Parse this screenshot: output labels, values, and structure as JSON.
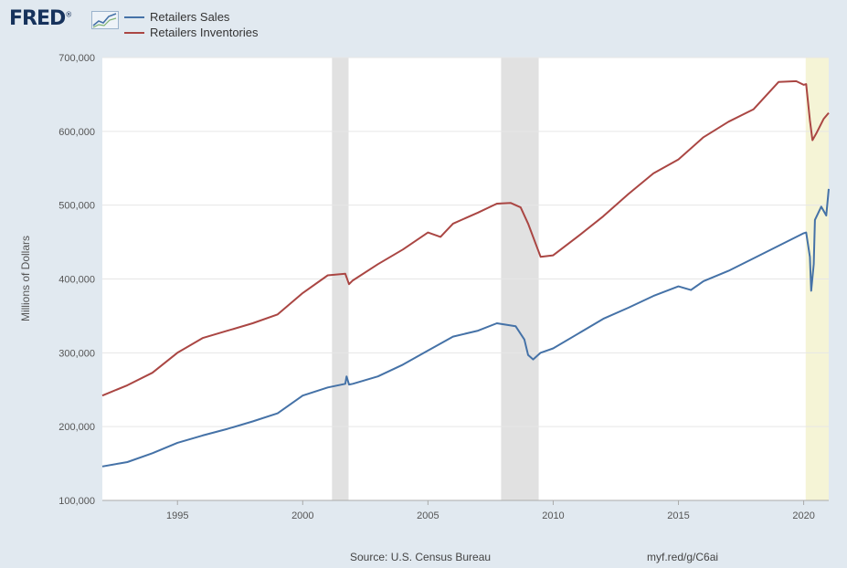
{
  "header": {
    "logo_text": "FRED",
    "logo_mark": "®"
  },
  "colors": {
    "sales": "#4572a7",
    "inventories": "#aa4643",
    "recession": "#e1e1e1",
    "highlight": "#f5f4d6"
  },
  "chart_data": {
    "type": "line",
    "title": "",
    "ylabel": "Millions of Dollars",
    "xlabel": "",
    "xlim": [
      1992.0,
      2021.0
    ],
    "ylim": [
      100000,
      700000
    ],
    "y_ticks": [
      100000,
      200000,
      300000,
      400000,
      500000,
      600000,
      700000
    ],
    "y_tick_labels": [
      "100,000",
      "200,000",
      "300,000",
      "400,000",
      "500,000",
      "600,000",
      "700,000"
    ],
    "x_ticks": [
      1995,
      2000,
      2005,
      2010,
      2015,
      2020
    ],
    "x_tick_labels": [
      "1995",
      "2000",
      "2005",
      "2010",
      "2015",
      "2020"
    ],
    "recessions": [
      [
        2001.17,
        2001.83
      ],
      [
        2007.92,
        2009.42
      ]
    ],
    "highlight_period": [
      2020.08,
      2021.0
    ],
    "series": [
      {
        "name": "Retailers Sales",
        "color": "#4572a7",
        "points": [
          [
            1992.0,
            146000
          ],
          [
            1993.0,
            152000
          ],
          [
            1994.0,
            164000
          ],
          [
            1995.0,
            178000
          ],
          [
            1996.0,
            188000
          ],
          [
            1997.0,
            197000
          ],
          [
            1998.0,
            207000
          ],
          [
            1999.0,
            218000
          ],
          [
            2000.0,
            242000
          ],
          [
            2001.0,
            253000
          ],
          [
            2001.7,
            258000
          ],
          [
            2001.75,
            268000
          ],
          [
            2001.85,
            257000
          ],
          [
            2002.0,
            258000
          ],
          [
            2003.0,
            268000
          ],
          [
            2004.0,
            284000
          ],
          [
            2005.0,
            303000
          ],
          [
            2006.0,
            322000
          ],
          [
            2007.0,
            330000
          ],
          [
            2007.75,
            340000
          ],
          [
            2008.5,
            336000
          ],
          [
            2008.85,
            318000
          ],
          [
            2009.0,
            297000
          ],
          [
            2009.2,
            291000
          ],
          [
            2009.5,
            300000
          ],
          [
            2010.0,
            306000
          ],
          [
            2011.0,
            326000
          ],
          [
            2012.0,
            346000
          ],
          [
            2013.0,
            361000
          ],
          [
            2014.0,
            377000
          ],
          [
            2015.0,
            390000
          ],
          [
            2015.5,
            385000
          ],
          [
            2016.0,
            397000
          ],
          [
            2017.0,
            411000
          ],
          [
            2018.0,
            428000
          ],
          [
            2019.0,
            445000
          ],
          [
            2020.0,
            462000
          ],
          [
            2020.1,
            463000
          ],
          [
            2020.25,
            430000
          ],
          [
            2020.3,
            384000
          ],
          [
            2020.4,
            420000
          ],
          [
            2020.45,
            480000
          ],
          [
            2020.7,
            498000
          ],
          [
            2020.9,
            486000
          ],
          [
            2021.0,
            522000
          ]
        ]
      },
      {
        "name": "Retailers Inventories",
        "color": "#aa4643",
        "points": [
          [
            1992.0,
            242000
          ],
          [
            1993.0,
            256000
          ],
          [
            1994.0,
            273000
          ],
          [
            1995.0,
            300000
          ],
          [
            1996.0,
            320000
          ],
          [
            1997.0,
            330000
          ],
          [
            1998.0,
            340000
          ],
          [
            1999.0,
            352000
          ],
          [
            2000.0,
            381000
          ],
          [
            2001.0,
            405000
          ],
          [
            2001.7,
            407000
          ],
          [
            2001.85,
            393000
          ],
          [
            2002.0,
            398000
          ],
          [
            2003.0,
            420000
          ],
          [
            2004.0,
            440000
          ],
          [
            2005.0,
            463000
          ],
          [
            2005.5,
            457000
          ],
          [
            2006.0,
            475000
          ],
          [
            2007.0,
            490000
          ],
          [
            2007.75,
            502000
          ],
          [
            2008.3,
            503000
          ],
          [
            2008.7,
            497000
          ],
          [
            2009.0,
            475000
          ],
          [
            2009.5,
            430000
          ],
          [
            2010.0,
            432000
          ],
          [
            2011.0,
            458000
          ],
          [
            2012.0,
            485000
          ],
          [
            2013.0,
            515000
          ],
          [
            2014.0,
            543000
          ],
          [
            2015.0,
            562000
          ],
          [
            2016.0,
            592000
          ],
          [
            2017.0,
            613000
          ],
          [
            2018.0,
            630000
          ],
          [
            2019.0,
            667000
          ],
          [
            2019.7,
            668000
          ],
          [
            2020.0,
            663000
          ],
          [
            2020.1,
            664000
          ],
          [
            2020.25,
            615000
          ],
          [
            2020.35,
            588000
          ],
          [
            2020.5,
            597000
          ],
          [
            2020.8,
            617000
          ],
          [
            2021.0,
            625000
          ]
        ]
      }
    ]
  },
  "footer": {
    "source": "Source: U.S. Census Bureau",
    "link": "myf.red/g/C6ai"
  }
}
